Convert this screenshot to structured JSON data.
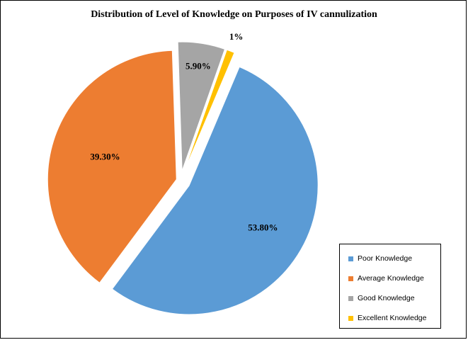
{
  "chart_data": {
    "type": "pie",
    "title": "Distribution of Level of Knowledge on Purposes of IV cannulization",
    "slices": [
      {
        "name": "Poor Knowledge",
        "value": 53.8,
        "label": "53.80%",
        "color": "#5B9BD5"
      },
      {
        "name": "Average Knowledge",
        "value": 39.3,
        "label": "39.30%",
        "color": "#ED7D31"
      },
      {
        "name": "Good Knowledge",
        "value": 5.9,
        "label": "5.90%",
        "color": "#A5A5A5"
      },
      {
        "name": "Excellent Knowledge",
        "value": 1,
        "label": "1%",
        "color": "#FFC000"
      }
    ],
    "exploded": true,
    "legend_position": "bottom-right"
  }
}
